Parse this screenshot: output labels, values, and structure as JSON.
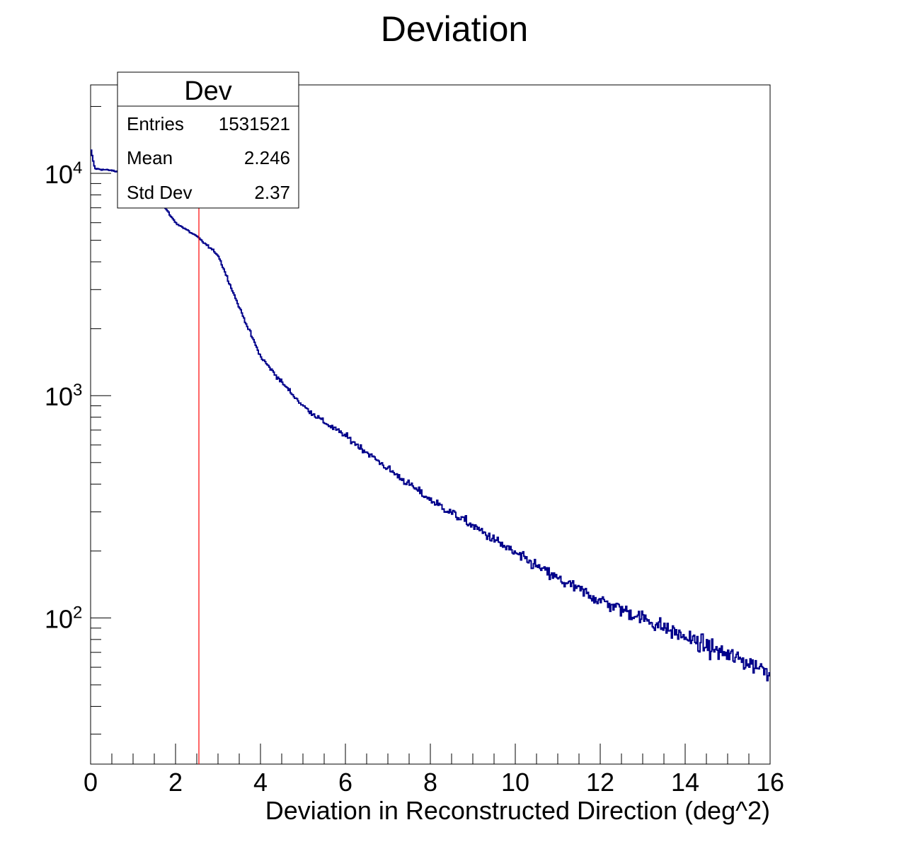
{
  "chart_data": {
    "type": "histogram",
    "title": "Deviation",
    "xlabel": "Deviation in Reconstructed Direction (deg^2)",
    "ylabel": "",
    "xlim": [
      0,
      16
    ],
    "ylim": [
      22,
      25000
    ],
    "yscale": "log",
    "x_ticks": [
      "0",
      "2",
      "4",
      "6",
      "8",
      "10",
      "12",
      "14",
      "16"
    ],
    "y_ticks": [
      {
        "base": "10",
        "exp": "2",
        "value": 100
      },
      {
        "base": "10",
        "exp": "3",
        "value": 1000
      },
      {
        "base": "10",
        "exp": "4",
        "value": 10000
      }
    ],
    "grid": false,
    "bins": 640,
    "anchors": {
      "x": [
        0.0,
        0.1,
        0.5,
        1.0,
        1.5,
        2.0,
        2.5,
        3.0,
        3.5,
        4.0,
        4.5,
        5.0,
        5.5,
        6.0,
        7.0,
        8.0,
        9.0,
        10.0,
        11.0,
        12.0,
        13.0,
        14.0,
        15.0,
        16.0
      ],
      "y": [
        13000,
        10500,
        10300,
        9800,
        8200,
        6000,
        5200,
        4300,
        2500,
        1500,
        1150,
        900,
        760,
        660,
        470,
        340,
        260,
        195,
        150,
        120,
        100,
        82,
        68,
        58
      ]
    },
    "series": [
      {
        "color": "#00008b"
      }
    ],
    "marker_line": {
      "x": 2.55,
      "color": "#ff0000"
    },
    "stats_box": {
      "title": "Dev",
      "rows": [
        {
          "label": "Entries",
          "value": "1531521"
        },
        {
          "label": "Mean",
          "value": "2.246"
        },
        {
          "label": "Std Dev",
          "value": "2.37"
        }
      ]
    }
  }
}
